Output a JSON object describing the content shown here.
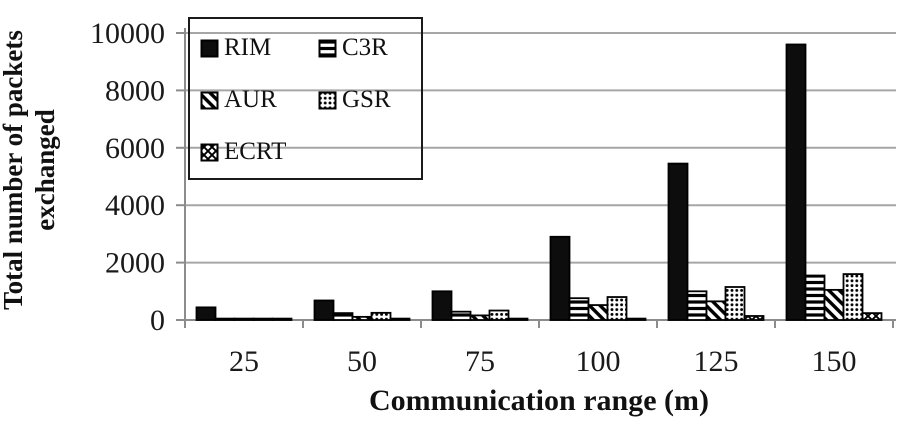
{
  "figure": {
    "y_axis_title_lines": [
      "Total number of packets",
      "exchanged"
    ],
    "x_axis_title": "Communication range (m)"
  },
  "legend": {
    "position": "top-left-inside",
    "items": [
      {
        "label": "RIM",
        "pattern": "solid"
      },
      {
        "label": "C3R",
        "pattern": "hlines"
      },
      {
        "label": "AUR",
        "pattern": "diag"
      },
      {
        "label": "GSR",
        "pattern": "dots"
      },
      {
        "label": "ECRT",
        "pattern": "cross"
      }
    ]
  },
  "chart_data": {
    "type": "bar",
    "title": "",
    "xlabel": "Communication range (m)",
    "ylabel": "Total number of packets exchanged",
    "categories": [
      "25",
      "50",
      "75",
      "100",
      "125",
      "150"
    ],
    "series": [
      {
        "name": "RIM",
        "pattern": "solid",
        "values": [
          440,
          680,
          1000,
          2900,
          5450,
          9600
        ]
      },
      {
        "name": "C3R",
        "pattern": "hlines",
        "values": [
          30,
          240,
          290,
          760,
          1000,
          1550
        ]
      },
      {
        "name": "AUR",
        "pattern": "diag",
        "values": [
          20,
          110,
          160,
          520,
          650,
          1050
        ]
      },
      {
        "name": "GSR",
        "pattern": "dots",
        "values": [
          30,
          250,
          330,
          800,
          1150,
          1600
        ]
      },
      {
        "name": "ECRT",
        "pattern": "cross",
        "values": [
          10,
          20,
          25,
          40,
          140,
          240
        ]
      }
    ],
    "ylim": [
      0,
      10000
    ],
    "ytick_step": 2000,
    "yticks": [
      "0",
      "2000",
      "4000",
      "6000",
      "8000",
      "10000"
    ],
    "grid": "horizontal",
    "legend_position": "top-left-inside",
    "colors": {
      "bar_fill": "#0d0d0d",
      "pattern_bg": "#ffffff",
      "gridline": "#a6a6a6",
      "axis": "#8c8c8c",
      "text": "#1a1a1a"
    }
  }
}
